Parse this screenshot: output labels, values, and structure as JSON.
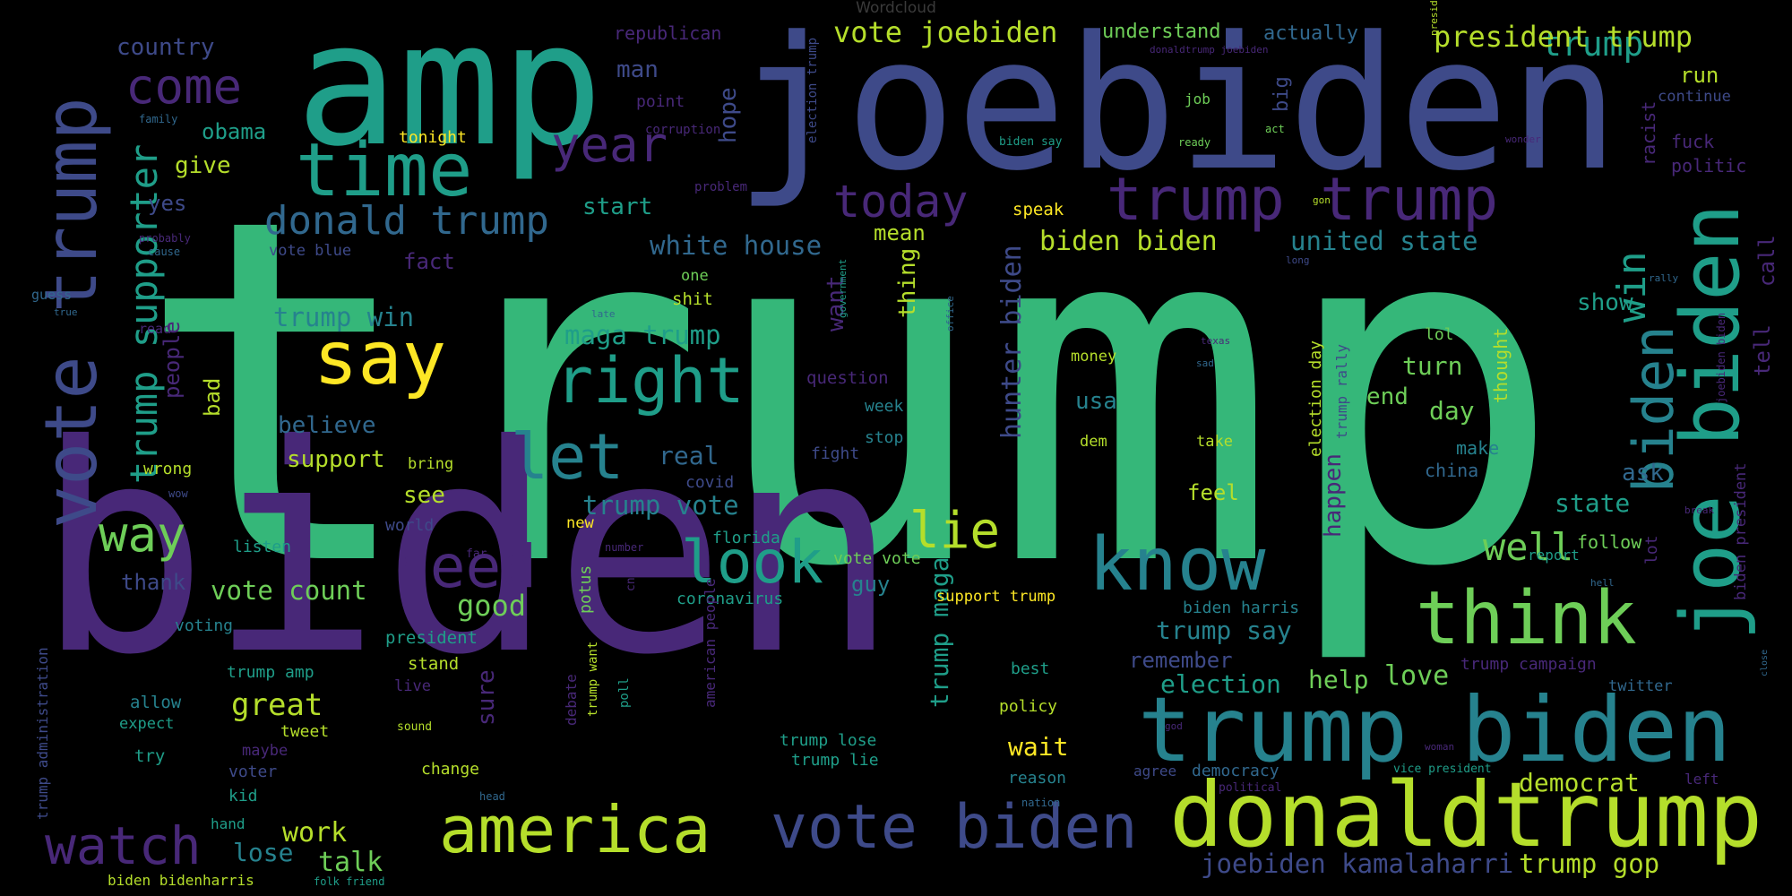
{
  "title": "Wordcloud",
  "palette": {
    "purple": "#482878",
    "indigo": "#3e4a89",
    "blue": "#31688e",
    "teal": "#26828e",
    "sea": "#1f9e89",
    "green": "#35b779",
    "lime": "#6ece58",
    "yellow": "#b5de2b",
    "gold": "#fde725"
  },
  "words": [
    {
      "text": "trump",
      "color": "green",
      "weight": 100
    },
    {
      "text": "biden",
      "color": "purple",
      "weight": 92
    },
    {
      "text": "joebiden",
      "color": "indigo",
      "weight": 70
    },
    {
      "text": "amp",
      "color": "sea",
      "weight": 55
    },
    {
      "text": "donaldtrump",
      "color": "yellow",
      "weight": 38
    },
    {
      "text": "trump biden",
      "color": "teal",
      "weight": 36
    },
    {
      "text": "joe biden",
      "color": "sea",
      "weight": 34
    },
    {
      "text": "vote trump",
      "color": "indigo",
      "weight": 32
    },
    {
      "text": "think",
      "color": "lime",
      "weight": 30
    },
    {
      "text": "know",
      "color": "teal",
      "weight": 30
    },
    {
      "text": "time",
      "color": "sea",
      "weight": 28
    },
    {
      "text": "say",
      "color": "gold",
      "weight": 28
    },
    {
      "text": "america",
      "color": "yellow",
      "weight": 26
    },
    {
      "text": "vote biden",
      "color": "indigo",
      "weight": 24
    },
    {
      "text": "watch",
      "color": "purple",
      "weight": 22
    },
    {
      "text": "right",
      "color": "sea",
      "weight": 24
    },
    {
      "text": "let",
      "color": "teal",
      "weight": 24
    },
    {
      "text": "need",
      "color": "purple",
      "weight": 24
    },
    {
      "text": "look",
      "color": "sea",
      "weight": 24
    },
    {
      "text": "trump trump",
      "color": "purple",
      "weight": 22
    },
    {
      "text": "biden",
      "color": "teal",
      "weight": 22
    },
    {
      "text": "come",
      "color": "purple",
      "weight": 20
    },
    {
      "text": "year",
      "color": "purple",
      "weight": 20
    },
    {
      "text": "lie",
      "color": "yellow",
      "weight": 20
    },
    {
      "text": "way",
      "color": "lime",
      "weight": 20
    },
    {
      "text": "today",
      "color": "purple",
      "weight": 18
    },
    {
      "text": "trump supporter",
      "color": "sea",
      "weight": 16
    },
    {
      "text": "donald trump",
      "color": "blue",
      "weight": 16
    },
    {
      "text": "win",
      "color": "sea",
      "weight": 16
    },
    {
      "text": "well",
      "color": "lime",
      "weight": 16
    },
    {
      "text": "trump",
      "color": "sea",
      "weight": 15
    },
    {
      "text": "president trump",
      "color": "yellow",
      "weight": 12
    },
    {
      "text": "vote joebiden",
      "color": "yellow",
      "weight": 12
    },
    {
      "text": "hunter biden",
      "color": "indigo",
      "weight": 12
    },
    {
      "text": "biden biden",
      "color": "yellow",
      "weight": 12
    },
    {
      "text": "united state",
      "color": "teal",
      "weight": 11
    },
    {
      "text": "white house",
      "color": "blue",
      "weight": 11
    },
    {
      "text": "maga trump",
      "color": "sea",
      "weight": 11
    },
    {
      "text": "trump win",
      "color": "teal",
      "weight": 11
    },
    {
      "text": "trump vote",
      "color": "teal",
      "weight": 11
    },
    {
      "text": "vote count",
      "color": "lime",
      "weight": 11
    },
    {
      "text": "election",
      "color": "sea",
      "weight": 11
    },
    {
      "text": "trump say",
      "color": "teal",
      "weight": 11
    },
    {
      "text": "trump maga",
      "color": "sea",
      "weight": 11
    },
    {
      "text": "joebiden kamalaharri",
      "color": "indigo",
      "weight": 11
    },
    {
      "text": "trump gop",
      "color": "yellow",
      "weight": 11
    },
    {
      "text": "democrat",
      "color": "yellow",
      "weight": 11
    },
    {
      "text": "great",
      "color": "yellow",
      "weight": 11
    },
    {
      "text": "good",
      "color": "lime",
      "weight": 11
    },
    {
      "text": "work",
      "color": "yellow",
      "weight": 11
    },
    {
      "text": "talk",
      "color": "lime",
      "weight": 11
    },
    {
      "text": "lose",
      "color": "teal",
      "weight": 11
    },
    {
      "text": "love",
      "color": "lime",
      "weight": 11
    },
    {
      "text": "help",
      "color": "lime",
      "weight": 11
    },
    {
      "text": "wait",
      "color": "gold",
      "weight": 11
    },
    {
      "text": "country",
      "color": "indigo",
      "weight": 10
    },
    {
      "text": "obama",
      "color": "sea",
      "weight": 10
    },
    {
      "text": "give",
      "color": "yellow",
      "weight": 10
    },
    {
      "text": "yes",
      "color": "indigo",
      "weight": 10
    },
    {
      "text": "fact",
      "color": "purple",
      "weight": 10
    },
    {
      "text": "start",
      "color": "sea",
      "weight": 10
    },
    {
      "text": "mean",
      "color": "yellow",
      "weight": 10
    },
    {
      "text": "man",
      "color": "indigo",
      "weight": 10
    },
    {
      "text": "hope",
      "color": "indigo",
      "weight": 10
    },
    {
      "text": "want",
      "color": "purple",
      "weight": 10
    },
    {
      "text": "thing",
      "color": "yellow",
      "weight": 10
    },
    {
      "text": "real",
      "color": "blue",
      "weight": 10
    },
    {
      "text": "see",
      "color": "yellow",
      "weight": 10
    },
    {
      "text": "support",
      "color": "yellow",
      "weight": 10
    },
    {
      "text": "believe",
      "color": "blue",
      "weight": 10
    },
    {
      "text": "people",
      "color": "purple",
      "weight": 10
    },
    {
      "text": "bad",
      "color": "yellow",
      "weight": 10
    },
    {
      "text": "show",
      "color": "sea",
      "weight": 10
    },
    {
      "text": "turn",
      "color": "lime",
      "weight": 10
    },
    {
      "text": "day",
      "color": "lime",
      "weight": 10
    },
    {
      "text": "end",
      "color": "lime",
      "weight": 10
    },
    {
      "text": "usa",
      "color": "teal",
      "weight": 10
    },
    {
      "text": "happen",
      "color": "purple",
      "weight": 10
    },
    {
      "text": "state",
      "color": "sea",
      "weight": 10
    },
    {
      "text": "ask",
      "color": "blue",
      "weight": 10
    },
    {
      "text": "call",
      "color": "purple",
      "weight": 10
    },
    {
      "text": "tell",
      "color": "purple",
      "weight": 10
    },
    {
      "text": "run",
      "color": "yellow",
      "weight": 9
    },
    {
      "text": "big",
      "color": "indigo",
      "weight": 9
    },
    {
      "text": "understand",
      "color": "lime",
      "weight": 9
    },
    {
      "text": "actually",
      "color": "blue",
      "weight": 9
    },
    {
      "text": "guy",
      "color": "teal",
      "weight": 9
    },
    {
      "text": "remember",
      "color": "indigo",
      "weight": 9
    },
    {
      "text": "thank",
      "color": "indigo",
      "weight": 9
    },
    {
      "text": "sure",
      "color": "purple",
      "weight": 9
    },
    {
      "text": "feel",
      "color": "yellow",
      "weight": 9
    },
    {
      "text": "thought",
      "color": "yellow",
      "weight": 9
    },
    {
      "text": "republican",
      "color": "purple",
      "weight": 8
    },
    {
      "text": "point",
      "color": "purple",
      "weight": 8
    },
    {
      "text": "tonight",
      "color": "gold",
      "weight": 8
    },
    {
      "text": "job",
      "color": "lime",
      "weight": 8
    },
    {
      "text": "lol",
      "color": "lime",
      "weight": 8
    },
    {
      "text": "election day",
      "color": "yellow",
      "weight": 8
    },
    {
      "text": "trump rally",
      "color": "indigo",
      "weight": 8
    },
    {
      "text": "racist",
      "color": "purple",
      "weight": 8
    },
    {
      "text": "fuck",
      "color": "purple",
      "weight": 8
    },
    {
      "text": "politic",
      "color": "purple",
      "weight": 8
    },
    {
      "text": "continue",
      "color": "indigo",
      "weight": 8
    },
    {
      "text": "biden harris",
      "color": "teal",
      "weight": 8
    },
    {
      "text": "week",
      "color": "teal",
      "weight": 8
    },
    {
      "text": "stop",
      "color": "teal",
      "weight": 8
    },
    {
      "text": "fight",
      "color": "indigo",
      "weight": 8
    },
    {
      "text": "covid",
      "color": "indigo",
      "weight": 8
    },
    {
      "text": "florida",
      "color": "sea",
      "weight": 8
    },
    {
      "text": "vote vote",
      "color": "lime",
      "weight": 8
    },
    {
      "text": "coronavirus",
      "color": "sea",
      "weight": 8
    },
    {
      "text": "potus",
      "color": "lime",
      "weight": 8
    },
    {
      "text": "support trump",
      "color": "gold",
      "weight": 7
    },
    {
      "text": "take",
      "color": "yellow",
      "weight": 7
    },
    {
      "text": "dem",
      "color": "yellow",
      "weight": 7
    },
    {
      "text": "money",
      "color": "yellow",
      "weight": 7
    },
    {
      "text": "make",
      "color": "teal",
      "weight": 8
    },
    {
      "text": "china",
      "color": "blue",
      "weight": 8
    },
    {
      "text": "follow",
      "color": "lime",
      "weight": 8
    },
    {
      "text": "lot",
      "color": "purple",
      "weight": 8
    },
    {
      "text": "biden president",
      "color": "purple",
      "weight": 7
    },
    {
      "text": "question",
      "color": "purple",
      "weight": 8
    },
    {
      "text": "shit",
      "color": "yellow",
      "weight": 8
    },
    {
      "text": "one",
      "color": "lime",
      "weight": 7
    },
    {
      "text": "speak",
      "color": "gold",
      "weight": 8
    },
    {
      "text": "wrong",
      "color": "yellow",
      "weight": 8
    },
    {
      "text": "bring",
      "color": "yellow",
      "weight": 7
    },
    {
      "text": "listen",
      "color": "sea",
      "weight": 8
    },
    {
      "text": "world",
      "color": "indigo",
      "weight": 8
    },
    {
      "text": "new",
      "color": "gold",
      "weight": 7
    },
    {
      "text": "voting",
      "color": "teal",
      "weight": 8
    },
    {
      "text": "president",
      "color": "sea",
      "weight": 8
    },
    {
      "text": "stand",
      "color": "yellow",
      "weight": 8
    },
    {
      "text": "trump amp",
      "color": "sea",
      "weight": 8
    },
    {
      "text": "allow",
      "color": "teal",
      "weight": 8
    },
    {
      "text": "expect",
      "color": "sea",
      "weight": 7
    },
    {
      "text": "tweet",
      "color": "yellow",
      "weight": 8
    },
    {
      "text": "try",
      "color": "sea",
      "weight": 8
    },
    {
      "text": "maybe",
      "color": "purple",
      "weight": 8
    },
    {
      "text": "voter",
      "color": "indigo",
      "weight": 8
    },
    {
      "text": "kid",
      "color": "sea",
      "weight": 8
    },
    {
      "text": "hand",
      "color": "sea",
      "weight": 7
    },
    {
      "text": "live",
      "color": "purple",
      "weight": 7
    },
    {
      "text": "change",
      "color": "yellow",
      "weight": 8
    },
    {
      "text": "trump lose",
      "color": "sea",
      "weight": 8
    },
    {
      "text": "trump lie",
      "color": "sea",
      "weight": 8
    },
    {
      "text": "best",
      "color": "sea",
      "weight": 8
    },
    {
      "text": "policy",
      "color": "yellow",
      "weight": 8
    },
    {
      "text": "reason",
      "color": "teal",
      "weight": 8
    },
    {
      "text": "democracy",
      "color": "blue",
      "weight": 8
    },
    {
      "text": "agree",
      "color": "indigo",
      "weight": 7
    },
    {
      "text": "trump campaign",
      "color": "purple",
      "weight": 8
    },
    {
      "text": "twitter",
      "color": "blue",
      "weight": 7
    },
    {
      "text": "left",
      "color": "purple",
      "weight": 7
    },
    {
      "text": "report",
      "color": "sea",
      "weight": 7
    },
    {
      "text": "debate",
      "color": "purple",
      "weight": 7
    },
    {
      "text": "trump want",
      "color": "yellow",
      "weight": 6
    },
    {
      "text": "poll",
      "color": "sea",
      "weight": 6
    },
    {
      "text": "american people",
      "color": "purple",
      "weight": 7
    },
    {
      "text": "trump administration",
      "color": "indigo",
      "weight": 7
    },
    {
      "text": "biden bidenharris",
      "color": "yellow",
      "weight": 7
    },
    {
      "text": "folk friend",
      "color": "sea",
      "weight": 5
    },
    {
      "text": "sound",
      "color": "yellow",
      "weight": 5
    },
    {
      "text": "cnn",
      "color": "purple",
      "weight": 5
    },
    {
      "text": "number",
      "color": "purple",
      "weight": 5
    },
    {
      "text": "far",
      "color": "purple",
      "weight": 5
    },
    {
      "text": "head",
      "color": "blue",
      "weight": 5
    },
    {
      "text": "nation",
      "color": "blue",
      "weight": 5
    },
    {
      "text": "political",
      "color": "purple",
      "weight": 5
    },
    {
      "text": "vice president",
      "color": "sea",
      "weight": 5
    },
    {
      "text": "woman",
      "color": "purple",
      "weight": 4
    },
    {
      "text": "god",
      "color": "purple",
      "weight": 4
    },
    {
      "text": "hell",
      "color": "blue",
      "weight": 4
    },
    {
      "text": "break",
      "color": "purple",
      "weight": 4
    },
    {
      "text": "close",
      "color": "blue",
      "weight": 4
    },
    {
      "text": "joebiden biden",
      "color": "purple",
      "weight": 5
    },
    {
      "text": "president united",
      "color": "yellow",
      "weight": 4
    },
    {
      "text": "donaldtrump joebiden",
      "color": "purple",
      "weight": 4
    },
    {
      "text": "election trump",
      "color": "indigo",
      "weight": 5
    },
    {
      "text": "corruption",
      "color": "purple",
      "weight": 5
    },
    {
      "text": "problem",
      "color": "purple",
      "weight": 5
    },
    {
      "text": "biden say",
      "color": "sea",
      "weight": 5
    },
    {
      "text": "ready",
      "color": "lime",
      "weight": 5
    },
    {
      "text": "act",
      "color": "lime",
      "weight": 5
    },
    {
      "text": "wonder",
      "color": "purple",
      "weight": 4
    },
    {
      "text": "gon",
      "color": "yellow",
      "weight": 4
    },
    {
      "text": "long",
      "color": "indigo",
      "weight": 4
    },
    {
      "text": "rally",
      "color": "blue",
      "weight": 4
    },
    {
      "text": "texas",
      "color": "purple",
      "weight": 4
    },
    {
      "text": "sad",
      "color": "blue",
      "weight": 4
    },
    {
      "text": "government",
      "color": "sea",
      "weight": 4
    },
    {
      "text": "office",
      "color": "blue",
      "weight": 4
    },
    {
      "text": "late",
      "color": "blue",
      "weight": 4
    },
    {
      "text": "read",
      "color": "purple",
      "weight": 5
    },
    {
      "text": "guess",
      "color": "blue",
      "weight": 5
    },
    {
      "text": "true",
      "color": "blue",
      "weight": 4
    },
    {
      "text": "wow",
      "color": "indigo",
      "weight": 4
    },
    {
      "text": "family",
      "color": "blue",
      "weight": 4
    },
    {
      "text": "probably",
      "color": "purple",
      "weight": 4
    },
    {
      "text": "cause",
      "color": "blue",
      "weight": 4
    },
    {
      "text": "vote blue",
      "color": "indigo",
      "weight": 5
    }
  ]
}
